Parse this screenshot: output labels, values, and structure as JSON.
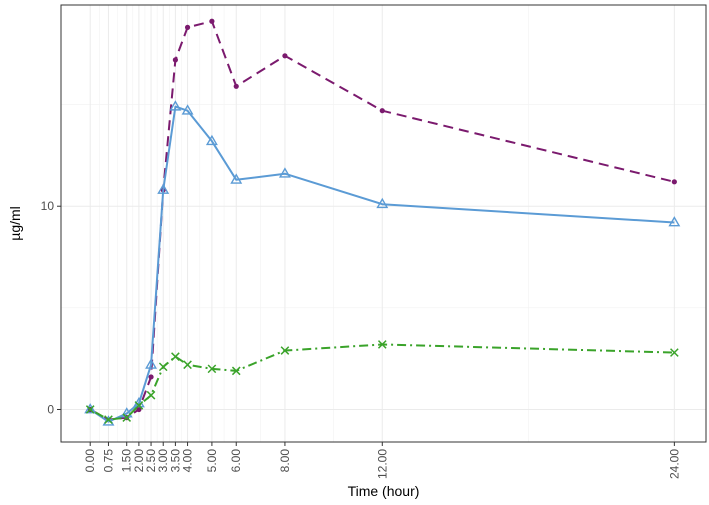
{
  "chart_data": {
    "type": "line",
    "title": "",
    "xlabel": "Time (hour)",
    "ylabel": "µg/ml",
    "x": [
      0,
      0.75,
      1.5,
      2.0,
      2.5,
      3.0,
      3.5,
      4.0,
      5.0,
      6.0,
      8.0,
      12.0,
      24.0
    ],
    "x_tick_labels": [
      "0.00",
      "0.75",
      "1.50",
      "2.00",
      "2.50",
      "3.00",
      "3.50",
      "4.00",
      "5.00",
      "6.00",
      "8.00",
      "12.00",
      "24.00"
    ],
    "y_ticks": [
      0,
      10
    ],
    "y_tick_labels": [
      "0",
      "10"
    ],
    "xlim": [
      -1.2,
      25.3
    ],
    "ylim": [
      -1.6,
      19.9
    ],
    "grid": true,
    "legend": "none",
    "series": [
      {
        "name": "dashed-purple",
        "color": "#7b1a6e",
        "dash": "dashed",
        "marker": "dot",
        "values": [
          0.0,
          -0.5,
          -0.4,
          0.0,
          1.6,
          10.8,
          17.2,
          18.8,
          19.1,
          15.9,
          17.4,
          14.7,
          11.2
        ]
      },
      {
        "name": "solid-blue",
        "color": "#5b9bd5",
        "dash": "solid",
        "marker": "triangle",
        "values": [
          0.0,
          -0.6,
          -0.2,
          0.3,
          2.2,
          10.8,
          14.9,
          14.7,
          13.2,
          11.3,
          11.6,
          10.1,
          9.2
        ]
      },
      {
        "name": "dotdash-green",
        "color": "#3aa32a",
        "dash": "dotdash",
        "marker": "x",
        "values": [
          0.0,
          -0.5,
          -0.4,
          0.2,
          0.7,
          2.1,
          2.6,
          2.2,
          2.0,
          1.9,
          2.9,
          3.2,
          2.8
        ]
      }
    ]
  }
}
